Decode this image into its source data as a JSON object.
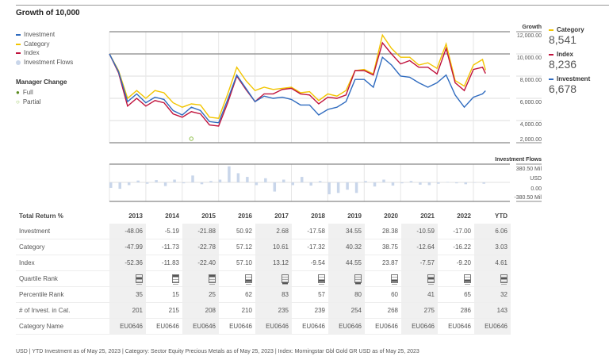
{
  "title": "Growth of 10,000",
  "legend": {
    "items": [
      {
        "label": "Investment",
        "color": "#2f6bbf"
      },
      {
        "label": "Category",
        "color": "#f2c500"
      },
      {
        "label": "Index",
        "color": "#c0123c"
      },
      {
        "label": "Investment Flows",
        "color": "#c9d6ea"
      }
    ],
    "manager_change_title": "Manager Change",
    "full": "Full",
    "partial": "Partial",
    "full_color": "#5a8a1e",
    "partial_color": "#8fbf4a"
  },
  "right_panel": [
    {
      "label": "Category",
      "value": "8,541",
      "color": "#f2c500"
    },
    {
      "label": "Index",
      "value": "8,236",
      "color": "#c0123c"
    },
    {
      "label": "Investment",
      "value": "6,678",
      "color": "#2f6bbf"
    }
  ],
  "chart_data": [
    {
      "type": "line",
      "ylabel": "Growth",
      "yticks": [
        "12,000.00",
        "10,000.00",
        "8,000.00",
        "6,000.00",
        "4,000.00",
        "2,000.00"
      ],
      "ylim": [
        2000,
        12000
      ],
      "grid": true,
      "x": [
        "2013-01",
        "2013-04",
        "2013-07",
        "2013-10",
        "2014-01",
        "2014-04",
        "2014-07",
        "2014-10",
        "2015-01",
        "2015-04",
        "2015-07",
        "2015-10",
        "2016-01",
        "2016-04",
        "2016-07",
        "2016-10",
        "2017-01",
        "2017-04",
        "2017-07",
        "2017-10",
        "2018-01",
        "2018-04",
        "2018-07",
        "2018-10",
        "2019-01",
        "2019-04",
        "2019-07",
        "2019-10",
        "2020-01",
        "2020-04",
        "2020-07",
        "2020-10",
        "2021-01",
        "2021-04",
        "2021-07",
        "2021-10",
        "2022-01",
        "2022-04",
        "2022-07",
        "2022-10",
        "2023-01",
        "2023-04",
        "2023-05"
      ],
      "series": [
        {
          "name": "Investment",
          "color": "#2f6bbf",
          "values": [
            10000,
            8400,
            5700,
            6400,
            5600,
            6100,
            5900,
            4900,
            4500,
            5200,
            4900,
            3900,
            3800,
            5900,
            8100,
            6900,
            5700,
            6200,
            6000,
            6100,
            5900,
            5400,
            5400,
            4500,
            5000,
            5200,
            5700,
            7700,
            7700,
            7000,
            9700,
            9000,
            8000,
            7900,
            7400,
            7000,
            7400,
            8100,
            6300,
            5200,
            6100,
            6400,
            6678
          ]
        },
        {
          "name": "Category",
          "color": "#f2c500",
          "values": [
            10000,
            8500,
            6000,
            6700,
            6000,
            6700,
            6500,
            5600,
            5200,
            5500,
            5400,
            4300,
            4200,
            6400,
            8800,
            7600,
            6700,
            7000,
            6800,
            6900,
            7000,
            6500,
            6600,
            5800,
            6400,
            6200,
            6700,
            8500,
            8600,
            8200,
            11700,
            10500,
            9700,
            9700,
            9000,
            9200,
            8700,
            10900,
            7600,
            7100,
            9000,
            9500,
            8541
          ]
        },
        {
          "name": "Index",
          "color": "#c0123c",
          "values": [
            10000,
            8300,
            5300,
            6000,
            5300,
            5800,
            5600,
            4600,
            4300,
            4800,
            4600,
            3600,
            3500,
            5600,
            8000,
            6800,
            5700,
            6400,
            6400,
            6800,
            6900,
            6400,
            6300,
            5500,
            6100,
            6000,
            6300,
            8500,
            8500,
            8100,
            11000,
            10000,
            9100,
            9400,
            8800,
            8800,
            8200,
            10500,
            7400,
            6700,
            8600,
            8800,
            8236
          ]
        }
      ],
      "manager_changes": [
        {
          "date": "2015-04",
          "type": "Partial"
        }
      ]
    },
    {
      "type": "bar",
      "ylabel": "Investment Flows",
      "unit": "USD",
      "yticks": [
        "380.50 Mil",
        "0.00",
        "-380.50 Mil"
      ],
      "ylim": [
        -380.5,
        380.5
      ],
      "x": [
        "2013-01",
        "2013-04",
        "2013-07",
        "2013-10",
        "2014-01",
        "2014-04",
        "2014-07",
        "2014-10",
        "2015-01",
        "2015-04",
        "2015-07",
        "2015-10",
        "2016-01",
        "2016-04",
        "2016-07",
        "2016-10",
        "2017-01",
        "2017-04",
        "2017-07",
        "2017-10",
        "2018-01",
        "2018-04",
        "2018-07",
        "2018-10",
        "2019-01",
        "2019-04",
        "2019-07",
        "2019-10",
        "2020-01",
        "2020-04",
        "2020-07",
        "2020-10",
        "2021-01",
        "2021-04",
        "2021-07",
        "2021-10",
        "2022-01",
        "2022-04",
        "2022-07",
        "2022-10",
        "2023-01",
        "2023-04"
      ],
      "values": [
        -120,
        -140,
        -60,
        40,
        -30,
        50,
        -80,
        60,
        -20,
        150,
        -40,
        30,
        60,
        350,
        200,
        120,
        -60,
        90,
        -200,
        60,
        -60,
        120,
        -70,
        30,
        -260,
        -230,
        -160,
        -230,
        30,
        -90,
        60,
        -70,
        -20,
        30,
        -50,
        -60,
        -30,
        10,
        -20,
        -40,
        0,
        -30
      ]
    }
  ],
  "table": {
    "header": "Total Return %",
    "years": [
      "2013",
      "2014",
      "2015",
      "2016",
      "2017",
      "2018",
      "2019",
      "2020",
      "2021",
      "2022",
      "YTD"
    ],
    "rows": [
      {
        "label": "Investment",
        "values": [
          "-48.06",
          "-5.19",
          "-21.88",
          "50.92",
          "2.68",
          "-17.58",
          "34.55",
          "28.38",
          "-10.59",
          "-17.00",
          "6.06"
        ]
      },
      {
        "label": "Category",
        "values": [
          "-47.99",
          "-11.73",
          "-22.78",
          "57.12",
          "10.61",
          "-17.32",
          "40.32",
          "38.75",
          "-12.64",
          "-16.22",
          "3.03"
        ]
      },
      {
        "label": "Index",
        "values": [
          "-52.36",
          "-11.83",
          "-22.40",
          "57.10",
          "13.12",
          "-9.54",
          "44.55",
          "23.87",
          "-7.57",
          "-9.20",
          "4.61"
        ]
      }
    ],
    "quartile_label": "Quartile Rank",
    "quartiles": [
      2,
      1,
      1,
      3,
      4,
      3,
      4,
      3,
      2,
      3,
      2
    ],
    "rows2": [
      {
        "label": "Percentile Rank",
        "values": [
          "35",
          "15",
          "25",
          "62",
          "83",
          "57",
          "80",
          "60",
          "41",
          "65",
          "32"
        ]
      },
      {
        "label": "# of Invest. in Cat.",
        "values": [
          "201",
          "215",
          "208",
          "210",
          "235",
          "239",
          "254",
          "268",
          "275",
          "286",
          "143"
        ]
      },
      {
        "label": "Category Name",
        "values": [
          "EU0646",
          "EU0646",
          "EU0646",
          "EU0646",
          "EU0646",
          "EU0646",
          "EU0646",
          "EU0646",
          "EU0646",
          "EU0646",
          "EU0646"
        ]
      }
    ]
  },
  "footer": "USD | YTD Investment as of May 25, 2023 | Category: Sector Equity Precious Metals as of May 25, 2023 | Index: Morningstar Gbl Gold GR USD as of May 25, 2023"
}
